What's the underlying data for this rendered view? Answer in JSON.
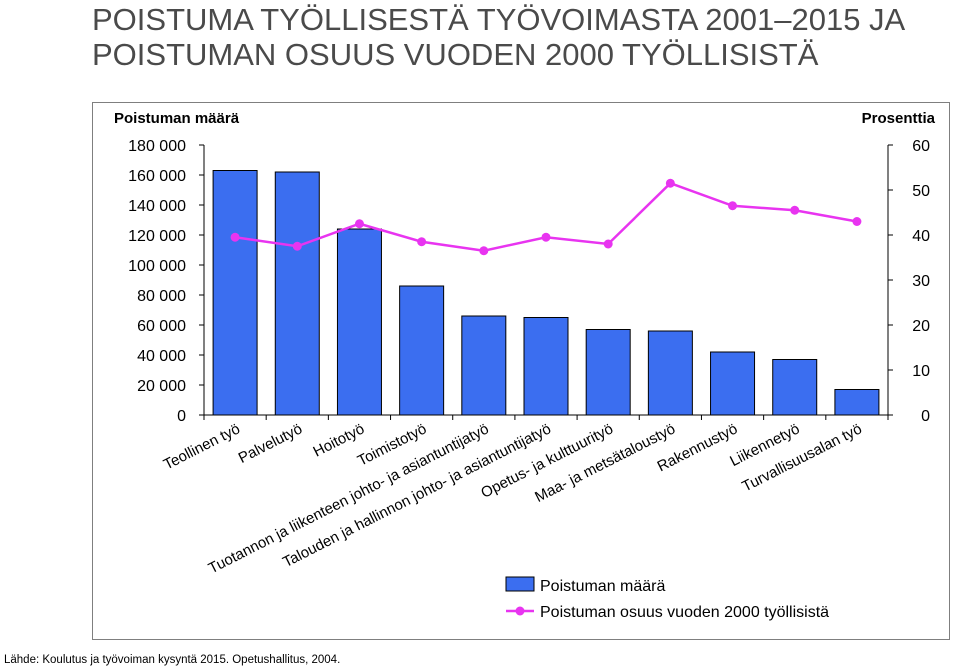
{
  "title": {
    "line1": "POISTUMA TYÖLLISESTÄ TYÖVOIMASTA 2001–2015 JA",
    "line2": "POISTUMAN OSUUS VUODEN 2000 TYÖLLISISTÄ"
  },
  "source": "Lähde: Koulutus ja työvoiman kysyntä 2015. Opetushallitus, 2004.",
  "colors": {
    "bar": "#3b6ef0",
    "line": "#e834f0",
    "axis": "#000000"
  },
  "chart_data": {
    "type": "bar",
    "categories": [
      "Teollinen työ",
      "Palvelutyö",
      "Hoitotyö",
      "Toimistotyö",
      "Tuotannon ja liikenteen johto- ja asiantuntijatyö",
      "Talouden ja hallinnon johto- ja asiantuntijatyö",
      "Opetus- ja kulttuurityö",
      "Maa- ja metsätaloustyö",
      "Rakennustyö",
      "Liikennetyö",
      "Turvallisuusalan työ"
    ],
    "series": [
      {
        "name": "Poistuman määrä",
        "type": "bar",
        "axis": "left",
        "values": [
          163000,
          162000,
          124000,
          86000,
          66000,
          65000,
          57000,
          56000,
          42000,
          37000,
          17000
        ]
      },
      {
        "name": "Poistuman osuus vuoden 2000 työllisistä",
        "type": "line",
        "axis": "right",
        "values": [
          39.5,
          37.5,
          42.5,
          38.5,
          36.5,
          39.5,
          38.0,
          51.5,
          46.5,
          45.5,
          43.0
        ]
      }
    ],
    "ylabel": "Poistuman määrä",
    "y2label": "Prosenttia",
    "ylim": [
      0,
      180000
    ],
    "yticks": [
      "180 000",
      "160 000",
      "140 000",
      "120 000",
      "100 000",
      "80 000",
      "60 000",
      "40 000",
      "20 000",
      "0"
    ],
    "y2lim": [
      0,
      60
    ],
    "y2ticks": [
      "60",
      "50",
      "40",
      "30",
      "20",
      "10",
      "0"
    ],
    "legend": "bottom-right",
    "grid": false
  }
}
